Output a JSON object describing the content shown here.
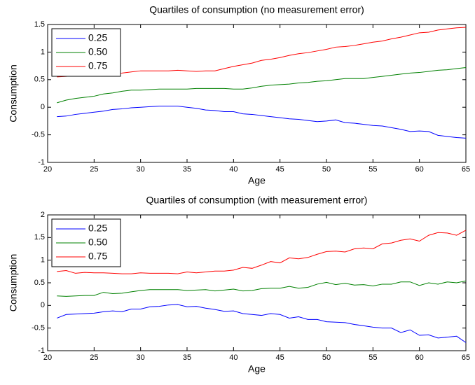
{
  "chart_data": [
    {
      "type": "line",
      "title": "Quartiles of consumption (no measurement error)",
      "xlabel": "Age",
      "ylabel": "Consumption",
      "x": [
        21,
        22,
        23,
        24,
        25,
        26,
        27,
        28,
        29,
        30,
        31,
        32,
        33,
        34,
        35,
        36,
        37,
        38,
        39,
        40,
        41,
        42,
        43,
        44,
        45,
        46,
        47,
        48,
        49,
        50,
        51,
        52,
        53,
        54,
        55,
        56,
        57,
        58,
        59,
        60,
        61,
        62,
        63,
        64,
        65
      ],
      "xlim": [
        20,
        65
      ],
      "xticks": [
        20,
        25,
        30,
        35,
        40,
        45,
        50,
        55,
        60,
        65
      ],
      "ylim": [
        -1,
        1.5
      ],
      "yticks": [
        -1,
        -0.5,
        0,
        0.5,
        1,
        1.5
      ],
      "legend": "upper left",
      "grid": false,
      "series": [
        {
          "name": "0.25",
          "color": "#0000ff",
          "values": [
            -0.17,
            -0.16,
            -0.13,
            -0.11,
            -0.09,
            -0.07,
            -0.04,
            -0.03,
            -0.01,
            0.0,
            0.01,
            0.02,
            0.02,
            0.02,
            0.0,
            -0.02,
            -0.05,
            -0.06,
            -0.08,
            -0.08,
            -0.12,
            -0.13,
            -0.15,
            -0.17,
            -0.19,
            -0.21,
            -0.22,
            -0.24,
            -0.26,
            -0.25,
            -0.23,
            -0.28,
            -0.29,
            -0.31,
            -0.33,
            -0.34,
            -0.37,
            -0.4,
            -0.44,
            -0.43,
            -0.44,
            -0.51,
            -0.53,
            -0.55,
            -0.56
          ]
        },
        {
          "name": "0.50",
          "color": "#008000",
          "values": [
            0.08,
            0.13,
            0.16,
            0.18,
            0.2,
            0.24,
            0.26,
            0.29,
            0.31,
            0.31,
            0.32,
            0.33,
            0.33,
            0.33,
            0.33,
            0.34,
            0.34,
            0.34,
            0.34,
            0.33,
            0.33,
            0.35,
            0.38,
            0.4,
            0.41,
            0.42,
            0.44,
            0.45,
            0.47,
            0.48,
            0.5,
            0.52,
            0.52,
            0.52,
            0.54,
            0.56,
            0.58,
            0.6,
            0.62,
            0.63,
            0.65,
            0.67,
            0.68,
            0.7,
            0.72
          ]
        },
        {
          "name": "0.75",
          "color": "#ff0000",
          "values": [
            0.55,
            0.56,
            0.57,
            0.58,
            0.59,
            0.6,
            0.61,
            0.62,
            0.64,
            0.66,
            0.66,
            0.66,
            0.66,
            0.67,
            0.66,
            0.65,
            0.66,
            0.66,
            0.7,
            0.74,
            0.77,
            0.8,
            0.85,
            0.87,
            0.9,
            0.94,
            0.97,
            0.99,
            1.02,
            1.05,
            1.09,
            1.1,
            1.12,
            1.15,
            1.18,
            1.2,
            1.24,
            1.27,
            1.31,
            1.35,
            1.36,
            1.4,
            1.42,
            1.44,
            1.45
          ]
        }
      ]
    },
    {
      "type": "line",
      "title": "Quartiles of consumption (with measurement error)",
      "xlabel": "Age",
      "ylabel": "Consumption",
      "x": [
        21,
        22,
        23,
        24,
        25,
        26,
        27,
        28,
        29,
        30,
        31,
        32,
        33,
        34,
        35,
        36,
        37,
        38,
        39,
        40,
        41,
        42,
        43,
        44,
        45,
        46,
        47,
        48,
        49,
        50,
        51,
        52,
        53,
        54,
        55,
        56,
        57,
        58,
        59,
        60,
        61,
        62,
        63,
        64,
        65
      ],
      "xlim": [
        20,
        65
      ],
      "xticks": [
        20,
        25,
        30,
        35,
        40,
        45,
        50,
        55,
        60,
        65
      ],
      "ylim": [
        -1,
        2
      ],
      "yticks": [
        -1,
        -0.5,
        0,
        0.5,
        1,
        1.5,
        2
      ],
      "legend": "upper left",
      "grid": false,
      "series": [
        {
          "name": "0.25",
          "color": "#0000ff",
          "values": [
            -0.28,
            -0.2,
            -0.19,
            -0.18,
            -0.17,
            -0.14,
            -0.12,
            -0.14,
            -0.08,
            -0.08,
            -0.03,
            -0.02,
            0.01,
            0.02,
            -0.03,
            -0.02,
            -0.06,
            -0.09,
            -0.13,
            -0.12,
            -0.18,
            -0.2,
            -0.22,
            -0.18,
            -0.2,
            -0.28,
            -0.25,
            -0.31,
            -0.31,
            -0.36,
            -0.37,
            -0.38,
            -0.42,
            -0.45,
            -0.48,
            -0.5,
            -0.5,
            -0.6,
            -0.54,
            -0.66,
            -0.65,
            -0.72,
            -0.7,
            -0.68,
            -0.82
          ]
        },
        {
          "name": "0.50",
          "color": "#008000",
          "values": [
            0.21,
            0.2,
            0.21,
            0.22,
            0.22,
            0.29,
            0.26,
            0.27,
            0.3,
            0.33,
            0.35,
            0.35,
            0.35,
            0.35,
            0.33,
            0.34,
            0.35,
            0.32,
            0.34,
            0.36,
            0.32,
            0.33,
            0.37,
            0.38,
            0.38,
            0.42,
            0.38,
            0.4,
            0.47,
            0.51,
            0.46,
            0.49,
            0.45,
            0.46,
            0.43,
            0.47,
            0.47,
            0.52,
            0.52,
            0.44,
            0.5,
            0.47,
            0.52,
            0.5,
            0.54
          ]
        },
        {
          "name": "0.75",
          "color": "#ff0000",
          "values": [
            0.75,
            0.77,
            0.71,
            0.73,
            0.72,
            0.72,
            0.71,
            0.7,
            0.7,
            0.72,
            0.71,
            0.71,
            0.71,
            0.7,
            0.74,
            0.72,
            0.74,
            0.76,
            0.76,
            0.78,
            0.84,
            0.82,
            0.89,
            0.97,
            0.94,
            1.05,
            1.03,
            1.06,
            1.13,
            1.19,
            1.2,
            1.18,
            1.25,
            1.27,
            1.25,
            1.36,
            1.38,
            1.44,
            1.47,
            1.42,
            1.55,
            1.61,
            1.6,
            1.55,
            1.66
          ]
        }
      ]
    }
  ]
}
